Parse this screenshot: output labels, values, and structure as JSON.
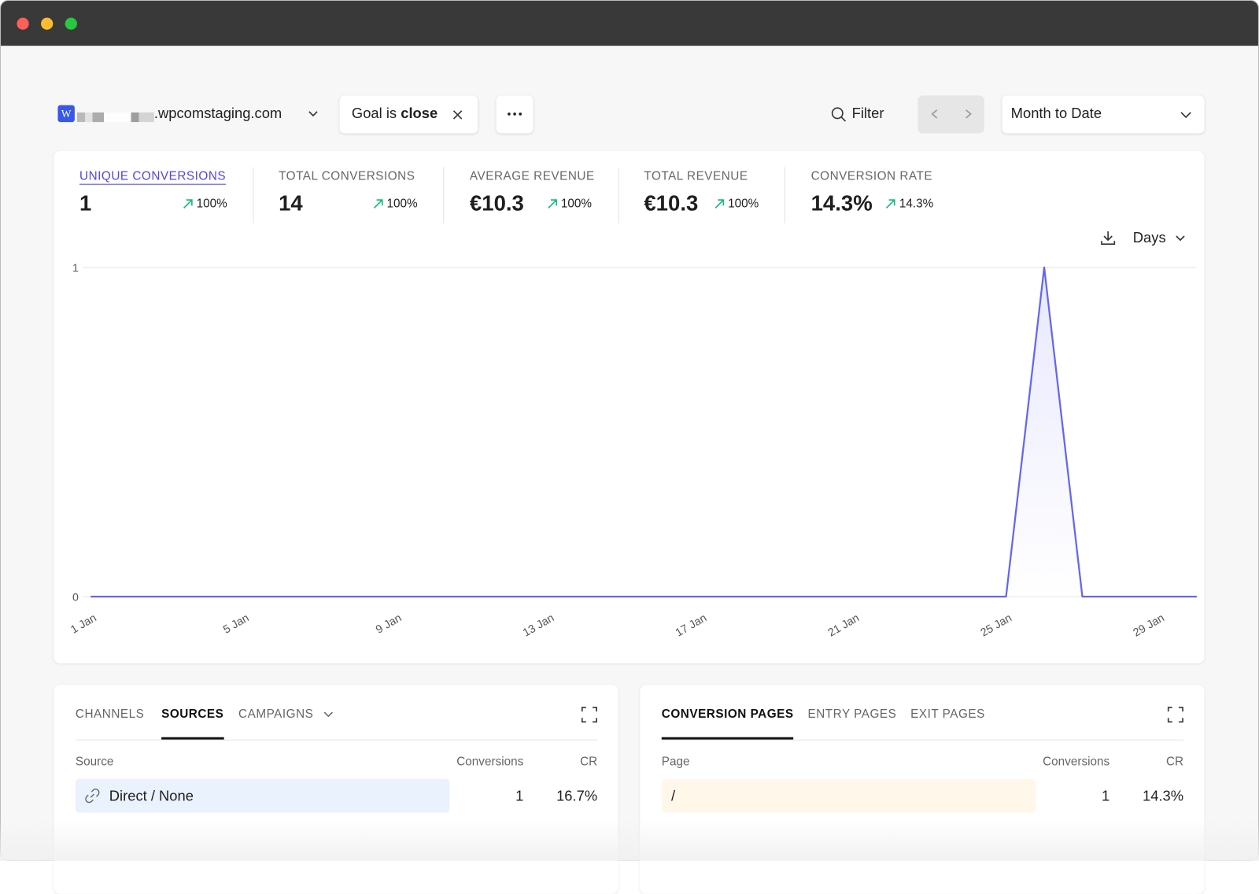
{
  "header": {
    "site": ".wpcomstaging.com",
    "goal_prefix": "Goal is",
    "goal_value": "close",
    "filter": "Filter",
    "period": "Month to Date"
  },
  "metrics": [
    {
      "label": "UNIQUE CONVERSIONS",
      "value": "1",
      "change": "100%"
    },
    {
      "label": "TOTAL CONVERSIONS",
      "value": "14",
      "change": "100%"
    },
    {
      "label": "AVERAGE REVENUE",
      "value": "€10.3",
      "change": "100%"
    },
    {
      "label": "TOTAL REVENUE",
      "value": "€10.3",
      "change": "100%"
    },
    {
      "label": "CONVERSION RATE",
      "value": "14.3%",
      "change": "14.3%"
    }
  ],
  "interval": "Days",
  "chart_data": {
    "type": "line",
    "color": "#6366f1",
    "categories": [
      "1 Jan",
      null,
      null,
      null,
      "5 Jan",
      null,
      null,
      null,
      "9 Jan",
      null,
      null,
      null,
      "13 Jan",
      null,
      null,
      null,
      "17 Jan",
      null,
      null,
      null,
      "21 Jan",
      null,
      null,
      null,
      "25 Jan",
      null,
      null,
      null,
      "29 Jan",
      null
    ],
    "values": [
      0,
      0,
      0,
      0,
      0,
      0,
      0,
      0,
      0,
      0,
      0,
      0,
      0,
      0,
      0,
      0,
      0,
      0,
      0,
      0,
      0,
      0,
      0,
      0,
      0,
      1,
      0,
      0,
      0,
      0
    ],
    "ylim": [
      0,
      1
    ],
    "yticks": [
      0,
      1
    ],
    "grid": true
  },
  "sources": {
    "tabs": [
      "CHANNELS",
      "SOURCES",
      "CAMPAIGNS"
    ],
    "active": 1,
    "columns": [
      "Source",
      "Conversions",
      "CR"
    ],
    "rows": [
      [
        "Direct / None",
        1,
        "16.7%"
      ]
    ]
  },
  "pages": {
    "tabs": [
      "CONVERSION PAGES",
      "ENTRY PAGES",
      "EXIT PAGES"
    ],
    "active": 0,
    "columns": [
      "Page",
      "Conversions",
      "CR"
    ],
    "rows": [
      [
        "/",
        1,
        "14.3%"
      ]
    ]
  }
}
